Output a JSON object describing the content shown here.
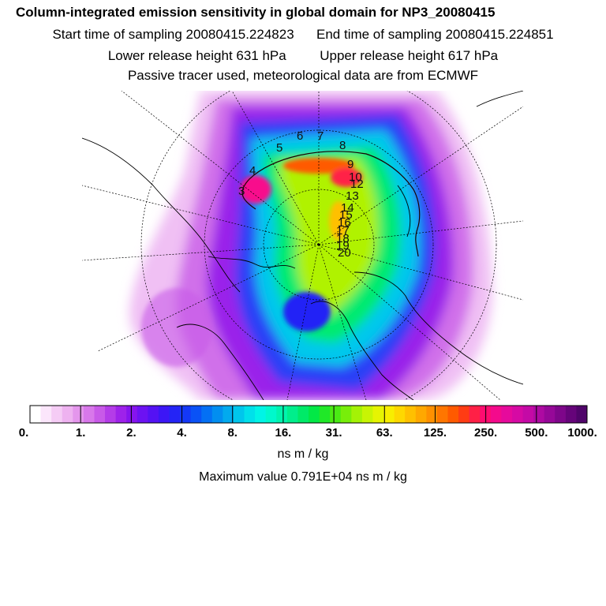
{
  "header": {
    "title": "Column-integrated emission sensitivity in global domain for NP3_20080415",
    "start_label": "Start time of sampling 20080415.224823",
    "end_label": "End time of sampling 20080415.224851",
    "lower_label": "Lower release height  631 hPa",
    "upper_label": "Upper release height  617 hPa",
    "tracer_note": "Passive tracer used, meteorological data are from ECMWF"
  },
  "map": {
    "projection": "polar-stereographic",
    "trajectory_labels": [
      "3",
      "4",
      "5",
      "6",
      "7",
      "8",
      "9",
      "10",
      "12",
      "13",
      "14",
      "15",
      "16",
      "17",
      "18",
      "19",
      "20"
    ]
  },
  "colorbar": {
    "ticks": [
      "0.",
      "1.",
      "2.",
      "4.",
      "8.",
      "16.",
      "31.",
      "63.",
      "125.",
      "250.",
      "500.",
      "1000."
    ],
    "colors": [
      "#ffffff",
      "#fbe6fb",
      "#f5ccf5",
      "#eeb2f0",
      "#e496ec",
      "#d878ea",
      "#c85ae8",
      "#b43ce8",
      "#9e22ea",
      "#8614ee",
      "#6c12f2",
      "#5412f4",
      "#3c16f6",
      "#2424f6",
      "#1438f6",
      "#0a52f6",
      "#0470f4",
      "#028ef0",
      "#02aaee",
      "#00c6ec",
      "#00e0ea",
      "#00f4e6",
      "#00f8cc",
      "#00f4ae",
      "#00ee8c",
      "#00ea68",
      "#02e846",
      "#20e828",
      "#4aea14",
      "#78ee0a",
      "#a4f206",
      "#c8f404",
      "#e6f402",
      "#f8ee00",
      "#fed800",
      "#ffc000",
      "#ffa800",
      "#ff9000",
      "#ff7600",
      "#ff5a00",
      "#ff3c14",
      "#ff2046",
      "#fe0c70",
      "#f40a8c",
      "#e60a9c",
      "#d60aa4",
      "#c40aa6",
      "#ae0aa2",
      "#960898",
      "#7e068a",
      "#66047a",
      "#50046a"
    ],
    "unit": "ns m / kg",
    "max_label": "Maximum value  0.791E+04 ns m / kg"
  }
}
